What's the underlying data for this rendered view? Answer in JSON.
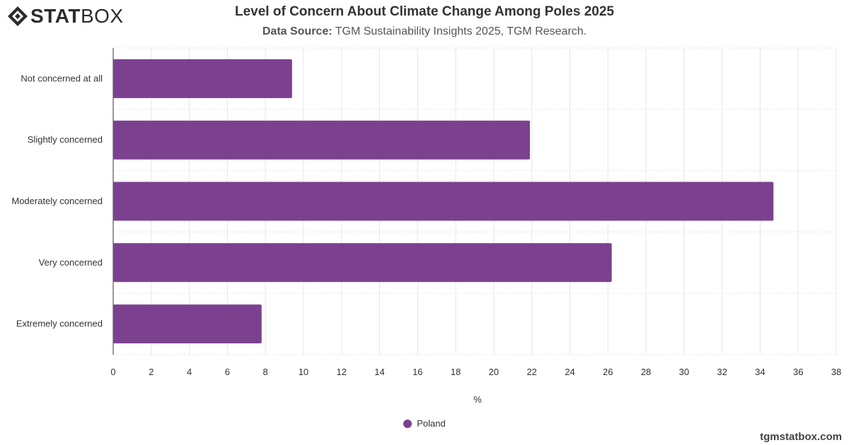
{
  "brand": {
    "logo_strong": "STAT",
    "logo_light": "BOX",
    "footer_url": "tgmstatbox.com"
  },
  "header": {
    "title": "Level of Concern About Climate Change Among Poles 2025",
    "source_label": "Data Source:",
    "source_text": "TGM Sustainability Insights 2025, TGM Research."
  },
  "legend": {
    "items": [
      {
        "label": "Poland",
        "color": "#7b418f"
      }
    ]
  },
  "chart_data": {
    "type": "bar",
    "orientation": "horizontal",
    "categories": [
      "Not concerned at all",
      "Slightly concerned",
      "Moderately concerned",
      "Very concerned",
      "Extremely concerned"
    ],
    "series": [
      {
        "name": "Poland",
        "values": [
          9.4,
          21.9,
          34.7,
          26.2,
          7.8
        ]
      }
    ],
    "xlabel": "%",
    "xlim": [
      0,
      38
    ],
    "xticks": [
      "0",
      "2",
      "4",
      "6",
      "8",
      "10",
      "12",
      "14",
      "16",
      "18",
      "20",
      "22",
      "24",
      "26",
      "28",
      "30",
      "32",
      "34",
      "36",
      "38"
    ],
    "grid": true,
    "legend_position": "bottom",
    "bar_color": "#7b418f"
  }
}
